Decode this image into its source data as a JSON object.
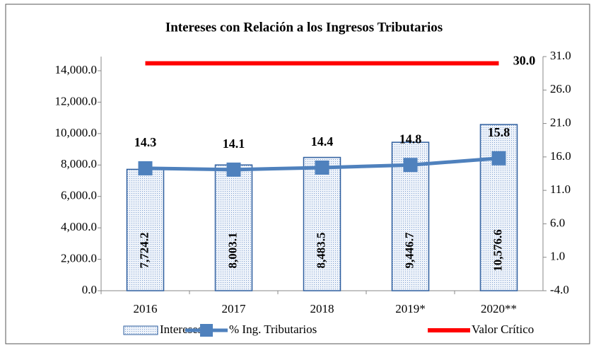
{
  "chart_data": {
    "type": "bar",
    "title": "Intereses con Relación a los Ingresos Tributarios",
    "categories": [
      "2016",
      "2017",
      "2018",
      "2019*",
      "2020**"
    ],
    "series": [
      {
        "name": "Intereses",
        "type": "bar",
        "color": "#4f81bd",
        "values": [
          7724.2,
          8003.1,
          8483.5,
          9446.7,
          10576.6
        ],
        "value_labels": [
          "7,724.2",
          "8,003.1",
          "8,483.5",
          "9,446.7",
          "10,576.6"
        ]
      },
      {
        "name": "% Ing. Tributarios",
        "type": "line",
        "axis": "y2",
        "color": "#4f81bd",
        "values": [
          14.3,
          14.1,
          14.4,
          14.8,
          15.8
        ]
      },
      {
        "name": "Valor Crítico",
        "type": "line",
        "axis": "y2",
        "color": "#ff0000",
        "values": [
          30.0,
          30.0,
          30.0,
          30.0,
          30.0
        ],
        "value_labels": [
          null,
          null,
          null,
          null,
          "30.0"
        ]
      }
    ],
    "ylim": [
      0,
      14900
    ],
    "yticks": [
      {
        "value": 0,
        "label": "0.0"
      },
      {
        "value": 2000,
        "label": "2,000.0"
      },
      {
        "value": 4000,
        "label": "4,000.0"
      },
      {
        "value": 6000,
        "label": "6,000.0"
      },
      {
        "value": 8000,
        "label": "8,000.0"
      },
      {
        "value": 10000,
        "label": "10,000.0"
      },
      {
        "value": 12000,
        "label": "12,000.0"
      },
      {
        "value": 14000,
        "label": "14,000.0"
      }
    ],
    "y2lim": [
      -4,
      31
    ],
    "y2ticks": [
      {
        "value": -4,
        "label": "-4.0"
      },
      {
        "value": 1,
        "label": "1.0"
      },
      {
        "value": 6,
        "label": "6.0"
      },
      {
        "value": 11,
        "label": "11.0"
      },
      {
        "value": 16,
        "label": "16.0"
      },
      {
        "value": 21,
        "label": "21.0"
      },
      {
        "value": 26,
        "label": "26.0"
      },
      {
        "value": 31,
        "label": "31.0"
      }
    ],
    "legend": "bottom"
  }
}
